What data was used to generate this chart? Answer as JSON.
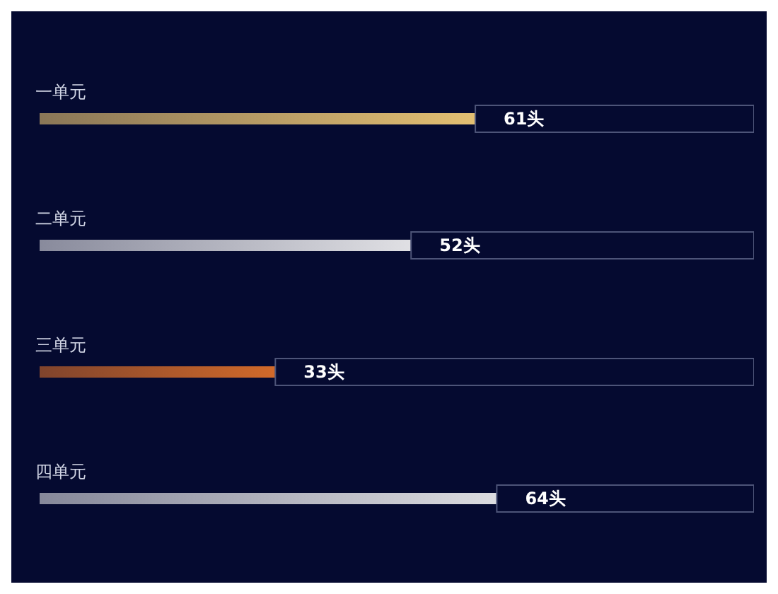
{
  "chart_data": {
    "type": "bar",
    "orientation": "horizontal",
    "stacked": true,
    "categories": [
      "一单元",
      "二单元",
      "三单元",
      "四单元"
    ],
    "series": [
      {
        "colors": [
          "#e3bf72",
          "#e0e0e4",
          "#d26a2a",
          "#dcdce0"
        ],
        "values": [
          61,
          52,
          33,
          64
        ],
        "value_labels": [
          "61头",
          "52头",
          "33头",
          "64头"
        ]
      },
      {
        "color": "#4d5478",
        "values": [
          39,
          48,
          67,
          36
        ]
      }
    ],
    "xlim": [
      0,
      100
    ],
    "tick_labels": "y"
  }
}
